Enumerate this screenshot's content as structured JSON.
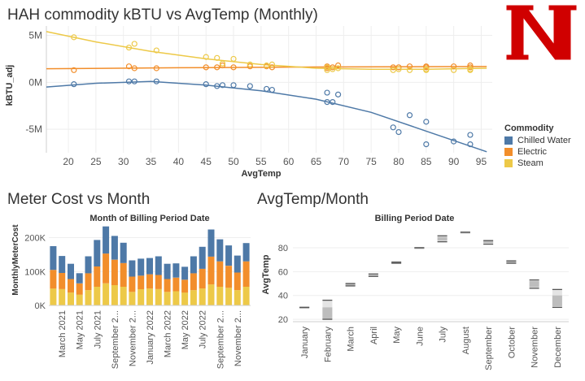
{
  "titles": {
    "main": "HAH commodity kBTU vs AvgTemp (Monthly)",
    "cost": "Meter Cost vs Month",
    "temp": "AvgTemp/Month"
  },
  "legend": {
    "title": "Commodity",
    "items": [
      {
        "label": "Chilled Water",
        "color": "#4e79a7"
      },
      {
        "label": "Electric",
        "color": "#f28e2b"
      },
      {
        "label": "Steam",
        "color": "#edc948"
      }
    ]
  },
  "logo": {
    "letter": "N",
    "color": "#d00000"
  },
  "chart_data": [
    {
      "type": "scatter",
      "title": "HAH commodity kBTU vs AvgTemp (Monthly)",
      "xlabel": "AvgTemp",
      "ylabel": "kBTU_adj",
      "xlim": [
        16,
        97
      ],
      "ylim": [
        -7.5,
        6
      ],
      "x_ticks": [
        20,
        25,
        30,
        35,
        40,
        45,
        50,
        55,
        60,
        65,
        70,
        75,
        80,
        85,
        90,
        95
      ],
      "y_ticks": [
        {
          "v": 5,
          "label": "5M"
        },
        {
          "v": 0,
          "label": "0M"
        },
        {
          "v": -5,
          "label": "-5M"
        }
      ],
      "grid": true,
      "trend_lines": true,
      "series": [
        {
          "name": "Chilled Water",
          "color": "#4e79a7",
          "points": [
            [
              21,
              -0.2
            ],
            [
              31,
              0.1
            ],
            [
              32,
              0.1
            ],
            [
              36,
              0.1
            ],
            [
              45,
              -0.2
            ],
            [
              47,
              -0.4
            ],
            [
              48,
              -0.3
            ],
            [
              50,
              -0.3
            ],
            [
              53,
              -0.4
            ],
            [
              56,
              -0.7
            ],
            [
              57,
              -0.8
            ],
            [
              67,
              -1.1
            ],
            [
              67,
              -2.1
            ],
            [
              68,
              -2.1
            ],
            [
              69,
              -1.3
            ],
            [
              79,
              -4.8
            ],
            [
              80,
              -5.3
            ],
            [
              82,
              -3.5
            ],
            [
              85,
              -4.2
            ],
            [
              85,
              -6.6
            ],
            [
              90,
              -6.3
            ],
            [
              93,
              -5.6
            ],
            [
              93,
              -6.6
            ]
          ],
          "trend": [
            [
              16,
              -0.5
            ],
            [
              25,
              -0.1
            ],
            [
              35,
              0.1
            ],
            [
              45,
              -0.3
            ],
            [
              55,
              -0.9
            ],
            [
              65,
              -1.8
            ],
            [
              75,
              -3.2
            ],
            [
              85,
              -5.2
            ],
            [
              96,
              -7.4
            ]
          ]
        },
        {
          "name": "Electric",
          "color": "#f28e2b",
          "points": [
            [
              21,
              1.3
            ],
            [
              31,
              1.7
            ],
            [
              32,
              1.5
            ],
            [
              36,
              1.5
            ],
            [
              45,
              1.6
            ],
            [
              47,
              1.6
            ],
            [
              48,
              1.8
            ],
            [
              50,
              1.6
            ],
            [
              53,
              1.7
            ],
            [
              56,
              1.7
            ],
            [
              57,
              1.6
            ],
            [
              67,
              1.7
            ],
            [
              67,
              1.5
            ],
            [
              68,
              1.6
            ],
            [
              69,
              1.8
            ],
            [
              79,
              1.6
            ],
            [
              80,
              1.6
            ],
            [
              82,
              1.7
            ],
            [
              85,
              1.6
            ],
            [
              85,
              1.7
            ],
            [
              90,
              1.7
            ],
            [
              93,
              1.6
            ],
            [
              93,
              1.8
            ]
          ],
          "trend": [
            [
              16,
              1.45
            ],
            [
              40,
              1.55
            ],
            [
              60,
              1.62
            ],
            [
              96,
              1.68
            ]
          ]
        },
        {
          "name": "Steam",
          "color": "#edc948",
          "points": [
            [
              21,
              4.8
            ],
            [
              31,
              3.7
            ],
            [
              32,
              4.1
            ],
            [
              36,
              3.4
            ],
            [
              45,
              2.7
            ],
            [
              47,
              2.6
            ],
            [
              48,
              2.0
            ],
            [
              50,
              2.5
            ],
            [
              53,
              1.9
            ],
            [
              56,
              1.8
            ],
            [
              57,
              1.9
            ],
            [
              67,
              1.6
            ],
            [
              67,
              1.3
            ],
            [
              68,
              1.4
            ],
            [
              69,
              1.5
            ],
            [
              79,
              1.3
            ],
            [
              80,
              1.4
            ],
            [
              82,
              1.3
            ],
            [
              85,
              1.3
            ],
            [
              85,
              1.4
            ],
            [
              90,
              1.3
            ],
            [
              93,
              1.4
            ],
            [
              93,
              1.3
            ]
          ],
          "trend": [
            [
              16,
              5.4
            ],
            [
              25,
              4.3
            ],
            [
              35,
              3.3
            ],
            [
              45,
              2.5
            ],
            [
              55,
              1.9
            ],
            [
              65,
              1.5
            ],
            [
              75,
              1.4
            ],
            [
              85,
              1.4
            ],
            [
              96,
              1.5
            ]
          ]
        }
      ]
    },
    {
      "type": "bar",
      "stacked": true,
      "title": "Month of Billing Period Date",
      "ylabel": "MonthlyMeterCost",
      "ylim": [
        0,
        230000
      ],
      "y_ticks": [
        {
          "v": 0,
          "label": "0K"
        },
        {
          "v": 100000,
          "label": "100K"
        },
        {
          "v": 200000,
          "label": "200K"
        }
      ],
      "tick_labels": [
        "March 2021",
        "May 2021",
        "July 2021",
        "September 2...",
        "November 2...",
        "January 2022",
        "March 2022",
        "May 2022",
        "July 2022",
        "September 2...",
        "November 2..."
      ],
      "categories": [
        "2021-02",
        "2021-03",
        "2021-04",
        "2021-05",
        "2021-06",
        "2021-07",
        "2021-08",
        "2021-09",
        "2021-10",
        "2021-11",
        "2021-12",
        "2022-01",
        "2022-02",
        "2022-03",
        "2022-04",
        "2022-05",
        "2022-06",
        "2022-07",
        "2022-08",
        "2022-09",
        "2022-10",
        "2022-11",
        "2022-12"
      ],
      "series": [
        {
          "name": "Steam",
          "color": "#edc948",
          "values": [
            50000,
            48000,
            38000,
            32000,
            45000,
            55000,
            65000,
            60000,
            55000,
            40000,
            48000,
            50000,
            48000,
            40000,
            42000,
            38000,
            45000,
            50000,
            62000,
            55000,
            52000,
            45000,
            55000
          ]
        },
        {
          "name": "Electric",
          "color": "#f28e2b",
          "values": [
            55000,
            48000,
            40000,
            33000,
            50000,
            60000,
            88000,
            75000,
            70000,
            45000,
            40000,
            42000,
            42000,
            38000,
            40000,
            38000,
            50000,
            58000,
            82000,
            75000,
            65000,
            52000,
            75000
          ]
        },
        {
          "name": "Chilled Water",
          "color": "#4e79a7",
          "values": [
            70000,
            50000,
            45000,
            30000,
            50000,
            78000,
            80000,
            70000,
            60000,
            48000,
            50000,
            48000,
            55000,
            45000,
            42000,
            38000,
            50000,
            65000,
            80000,
            65000,
            60000,
            50000,
            54000
          ]
        }
      ]
    },
    {
      "type": "box",
      "title": "Billing Period Date",
      "ylabel": "AvgTemp",
      "ylim": [
        18,
        97
      ],
      "y_ticks": [
        20,
        40,
        60,
        80
      ],
      "categories": [
        "January",
        "February",
        "March",
        "April",
        "May",
        "June",
        "July",
        "August",
        "September",
        "October",
        "November",
        "December"
      ],
      "boxes": [
        {
          "min": 30,
          "q1": 30,
          "q3": 30,
          "max": 30
        },
        {
          "min": 20,
          "q1": 20,
          "q3": 30,
          "max": 36
        },
        {
          "min": 48,
          "q1": 48,
          "q3": 50,
          "max": 50
        },
        {
          "min": 56,
          "q1": 56,
          "q3": 57,
          "max": 58
        },
        {
          "min": 67,
          "q1": 67,
          "q3": 68,
          "max": 68
        },
        {
          "min": 80,
          "q1": 80,
          "q3": 80,
          "max": 80
        },
        {
          "min": 85,
          "q1": 86,
          "q3": 89,
          "max": 90
        },
        {
          "min": 93,
          "q1": 93,
          "q3": 93,
          "max": 93
        },
        {
          "min": 83,
          "q1": 84,
          "q3": 86,
          "max": 86
        },
        {
          "min": 67,
          "q1": 67,
          "q3": 69,
          "max": 69
        },
        {
          "min": 46,
          "q1": 47,
          "q3": 52,
          "max": 53
        },
        {
          "min": 30,
          "q1": 31,
          "q3": 40,
          "max": 45
        }
      ]
    }
  ]
}
